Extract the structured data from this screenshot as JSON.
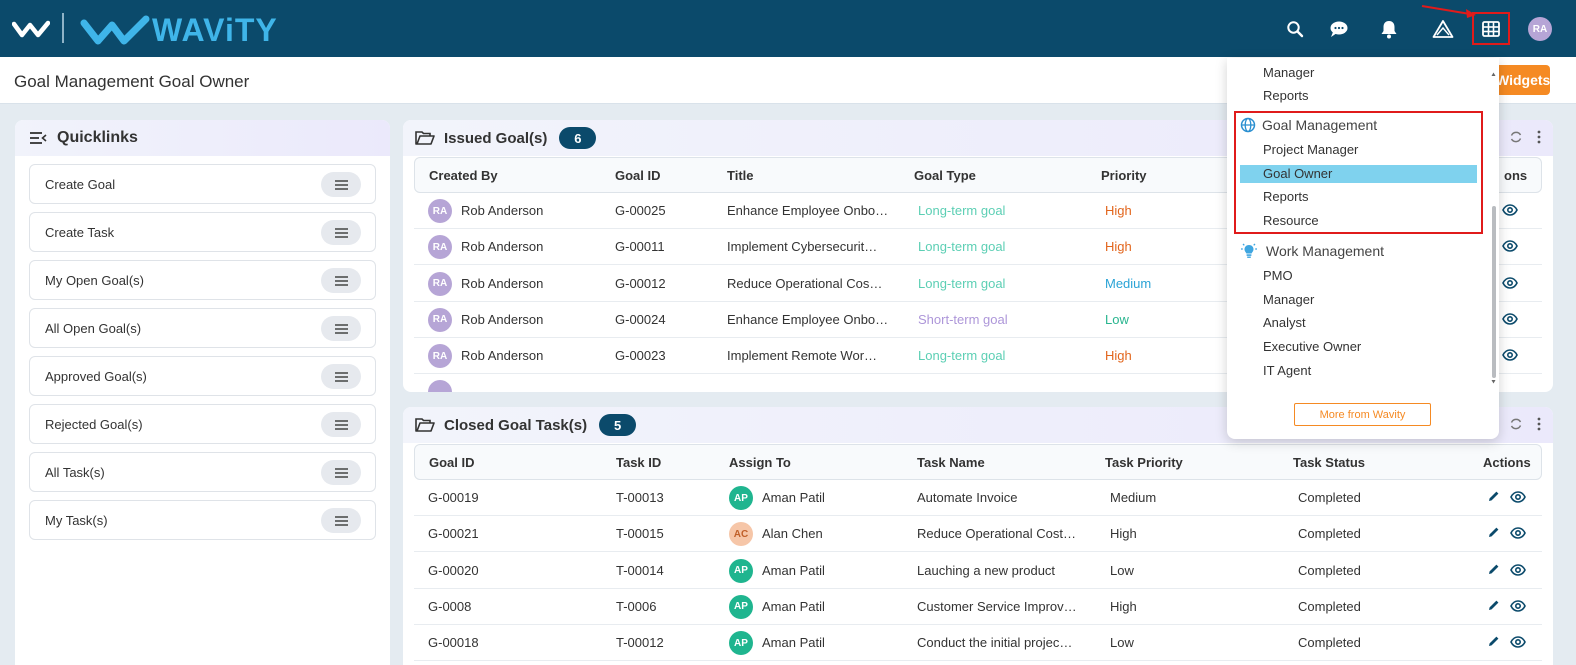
{
  "header": {
    "brand": "WAViTY",
    "avatar_initials": "RA"
  },
  "titlebar": {
    "title": "Goal Management Goal Owner",
    "widgets_label": "Widgets"
  },
  "quicklinks": {
    "title": "Quicklinks",
    "items": [
      {
        "label": "Create Goal"
      },
      {
        "label": "Create Task"
      },
      {
        "label": "My Open Goal(s)"
      },
      {
        "label": "All Open Goal(s)"
      },
      {
        "label": "Approved Goal(s)"
      },
      {
        "label": "Rejected Goal(s)"
      },
      {
        "label": "All Task(s)"
      },
      {
        "label": "My Task(s)"
      }
    ]
  },
  "issued": {
    "title": "Issued Goal(s)",
    "count": "6",
    "columns": [
      "Created By",
      "Goal ID",
      "Title",
      "Goal Type",
      "Priority",
      "ons"
    ],
    "rows": [
      {
        "initials": "RA",
        "created_by": "Rob Anderson",
        "goal_id": "G-00025",
        "title": "Enhance Employee Onbo…",
        "goal_type": "Long-term goal",
        "priority": "High"
      },
      {
        "initials": "RA",
        "created_by": "Rob Anderson",
        "goal_id": "G-00011",
        "title": "Implement Cybersecurit…",
        "goal_type": "Long-term goal",
        "priority": "High"
      },
      {
        "initials": "RA",
        "created_by": "Rob Anderson",
        "goal_id": "G-00012",
        "title": "Reduce Operational Cos…",
        "goal_type": "Long-term goal",
        "priority": "Medium"
      },
      {
        "initials": "RA",
        "created_by": "Rob Anderson",
        "goal_id": "G-00024",
        "title": "Enhance Employee Onbo…",
        "goal_type": "Short-term goal",
        "priority": "Low"
      },
      {
        "initials": "RA",
        "created_by": "Rob Anderson",
        "goal_id": "G-00023",
        "title": "Implement Remote Wor…",
        "goal_type": "Long-term goal",
        "priority": "High"
      }
    ]
  },
  "closed": {
    "title": "Closed Goal Task(s)",
    "count": "5",
    "columns": [
      "Goal ID",
      "Task ID",
      "Assign To",
      "Task Name",
      "Task Priority",
      "Task Status",
      "Actions"
    ],
    "rows": [
      {
        "goal_id": "G-00019",
        "task_id": "T-00013",
        "initials": "AP",
        "assign_to": "Aman Patil",
        "task_name": "Automate Invoice",
        "priority": "Medium",
        "status": "Completed"
      },
      {
        "goal_id": "G-00021",
        "task_id": "T-00015",
        "initials": "AC",
        "assign_to": "Alan Chen",
        "task_name": "Reduce Operational Cost…",
        "priority": "High",
        "status": "Completed"
      },
      {
        "goal_id": "G-00020",
        "task_id": "T-00014",
        "initials": "AP",
        "assign_to": "Aman Patil",
        "task_name": "Lauching a new product",
        "priority": "Low",
        "status": "Completed"
      },
      {
        "goal_id": "G-0008",
        "task_id": "T-0006",
        "initials": "AP",
        "assign_to": "Aman Patil",
        "task_name": "Customer Service Improv…",
        "priority": "High",
        "status": "Completed"
      },
      {
        "goal_id": "G-00018",
        "task_id": "T-00012",
        "initials": "AP",
        "assign_to": "Aman Patil",
        "task_name": "Conduct the initial projec…",
        "priority": "Low",
        "status": "Completed"
      }
    ]
  },
  "apps_menu": {
    "top_items": [
      "Manager",
      "Reports"
    ],
    "sections": [
      {
        "title": "Goal Management",
        "items": [
          "Project Manager",
          "Goal Owner",
          "Reports",
          "Resource"
        ],
        "selected": "Goal Owner"
      },
      {
        "title": "Work Management",
        "items": [
          "PMO",
          "Manager",
          "Analyst",
          "Executive Owner",
          "IT Agent"
        ]
      }
    ],
    "more_label": "More from Wavity"
  },
  "colors": {
    "topbar": "#0b4a6b",
    "accent_orange": "#f58a23",
    "long_term": "#5ccfb4",
    "short_term": "#ad96d9",
    "high": "#e2651c",
    "medium": "#2aa3d6",
    "low": "#29b58f"
  }
}
